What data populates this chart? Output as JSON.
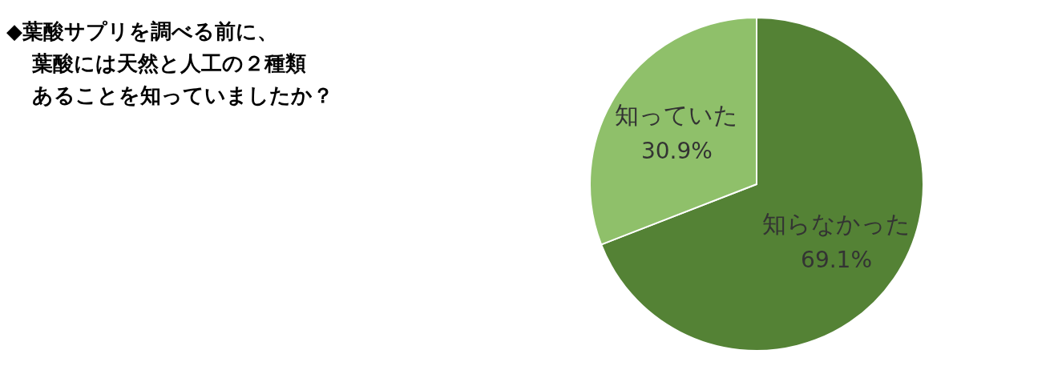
{
  "chart_data": {
    "type": "pie",
    "title": "◆葉酸サプリを調べる前に、",
    "subtitle": "葉酸には天然と人工の２種類",
    "annotations": [
      "あることを知っていましたか？"
    ],
    "categories": [
      "知らなかった",
      "知っていた"
    ],
    "values": [
      69.1,
      30.9
    ],
    "value_labels": [
      "69.1%",
      "30.9%"
    ],
    "colors": [
      "#548235",
      "#8fc06a"
    ]
  }
}
